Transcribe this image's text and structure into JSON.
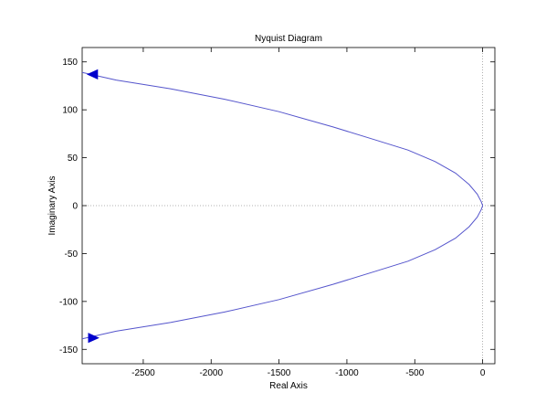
{
  "chart_data": {
    "type": "line",
    "title": "Nyquist Diagram",
    "xlabel": "Real Axis",
    "ylabel": "Imaginary Axis",
    "xlim": [
      -2950,
      90
    ],
    "ylim": [
      -165,
      165
    ],
    "xticks": [
      -2500,
      -2000,
      -1500,
      -1000,
      -500,
      0
    ],
    "yticks": [
      -150,
      -100,
      -50,
      0,
      50,
      100,
      150
    ],
    "grid": false,
    "reference_lines": {
      "x": 0,
      "y": 0
    },
    "colors": {
      "curve": "#5555cc",
      "arrow": "#0000cc",
      "reference": "#9a9a9a",
      "axes": "#000000"
    },
    "series": [
      {
        "x": [
          -2950,
          -2700,
          -2300,
          -1900,
          -1500,
          -1100,
          -800,
          -550,
          -350,
          -200,
          -100,
          -40,
          -10,
          0,
          -10,
          -40,
          -100,
          -200,
          -350,
          -550,
          -800,
          -1100,
          -1500,
          -1900,
          -2300,
          -2700,
          -2950
        ],
        "y": [
          139,
          131,
          122,
          111,
          98,
          82,
          69,
          58,
          46,
          34,
          22,
          12,
          4,
          0,
          -4,
          -12,
          -22,
          -34,
          -46,
          -58,
          -69,
          -82,
          -98,
          -111,
          -122,
          -131,
          -139
        ]
      }
    ],
    "arrows": [
      {
        "x": -2870,
        "y": 137,
        "direction": "left"
      },
      {
        "x": -2870,
        "y": -138,
        "direction": "right"
      }
    ]
  }
}
